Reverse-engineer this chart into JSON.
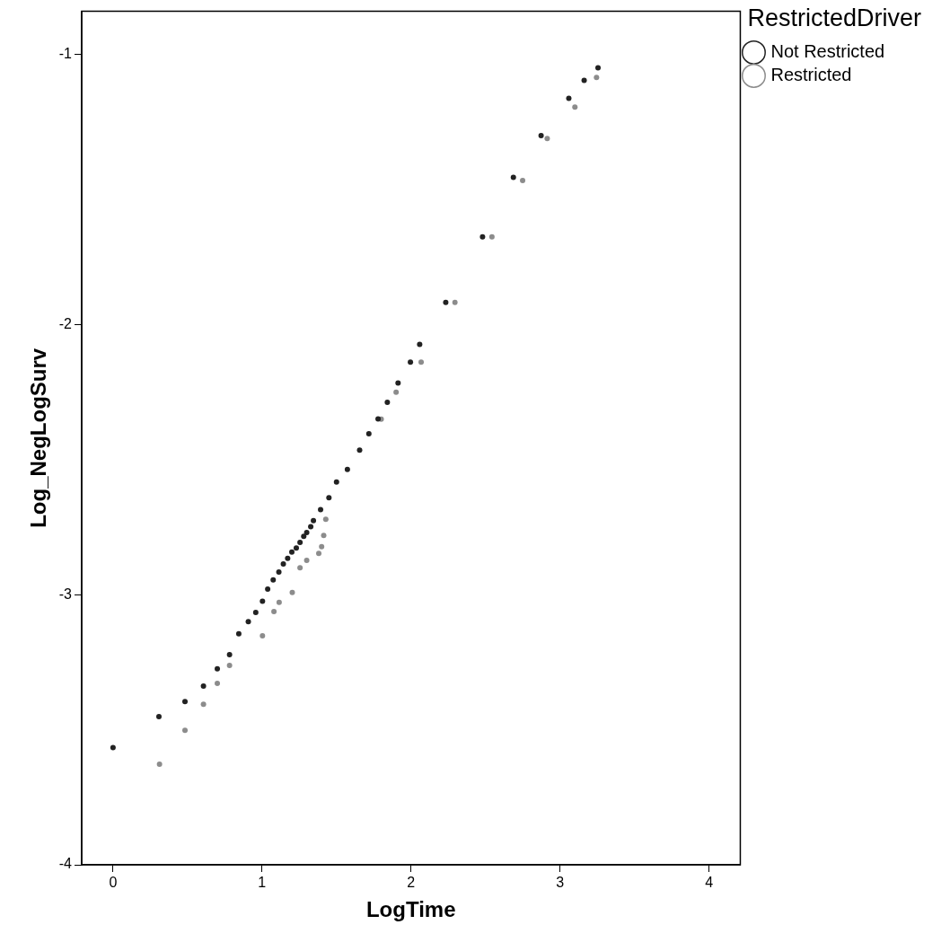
{
  "chart_data": {
    "type": "scatter",
    "xlabel": "LogTime",
    "ylabel": "Log_NegLogSurv",
    "legend_title": "RestrictedDriver",
    "legend": "top right",
    "grid": false,
    "marker": "circle",
    "xlim": [
      -0.21,
      4.21
    ],
    "xticks": [
      0,
      1,
      2,
      3,
      4
    ],
    "ylim": [
      -4,
      -0.84
    ],
    "yticks": [
      -4,
      -3,
      -2,
      -1
    ],
    "series": [
      {
        "name": "Not Restricted",
        "color": "#222222",
        "x": [
          0,
          0.308,
          0.483,
          0.607,
          0.7,
          0.782,
          0.844,
          0.908,
          0.958,
          1.003,
          1.038,
          1.075,
          1.113,
          1.143,
          1.172,
          1.2,
          1.23,
          1.255,
          1.28,
          1.3,
          1.327,
          1.345,
          1.393,
          1.449,
          1.5,
          1.573,
          1.655,
          1.717,
          1.779,
          1.841,
          1.913,
          1.996,
          2.058,
          2.233,
          2.48,
          2.687,
          2.873,
          3.059,
          3.162,
          3.255
        ],
        "values": [
          -3.566,
          -3.451,
          -3.396,
          -3.338,
          -3.274,
          -3.222,
          -3.145,
          -3.1,
          -3.066,
          -3.024,
          -2.979,
          -2.945,
          -2.916,
          -2.886,
          -2.865,
          -2.842,
          -2.827,
          -2.806,
          -2.784,
          -2.77,
          -2.748,
          -2.726,
          -2.685,
          -2.641,
          -2.583,
          -2.536,
          -2.465,
          -2.404,
          -2.349,
          -2.288,
          -2.216,
          -2.139,
          -2.073,
          -1.918,
          -1.675,
          -1.455,
          -1.3,
          -1.162,
          -1.096,
          -1.049
        ]
      },
      {
        "name": "Restricted",
        "color": "#8c8c8c",
        "x": [
          0.312,
          0.483,
          0.607,
          0.7,
          0.782,
          1.003,
          1.08,
          1.115,
          1.203,
          1.255,
          1.3,
          1.381,
          1.4,
          1.414,
          1.428,
          1.5,
          1.65,
          1.8,
          1.9,
          2.068,
          2.295,
          2.543,
          2.749,
          2.914,
          3.1,
          3.245
        ],
        "values": [
          -3.628,
          -3.502,
          -3.406,
          -3.328,
          -3.262,
          -3.152,
          -3.062,
          -3.028,
          -2.992,
          -2.9,
          -2.873,
          -2.847,
          -2.822,
          -2.781,
          -2.721,
          null,
          null,
          -2.35,
          -2.25,
          -2.139,
          -1.918,
          -1.675,
          -1.466,
          -1.311,
          -1.195,
          -1.085
        ]
      }
    ]
  }
}
